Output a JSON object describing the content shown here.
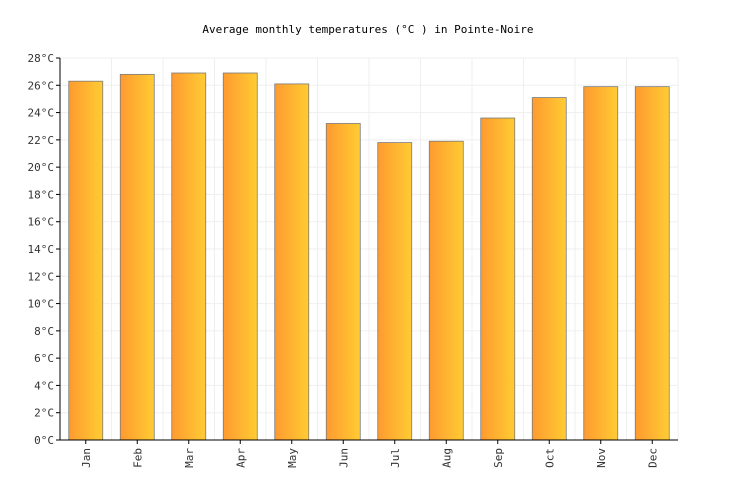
{
  "chart_data": {
    "type": "bar",
    "title": "Average monthly temperatures (°C ) in Pointe-Noire",
    "xlabel": "",
    "ylabel": "",
    "categories": [
      "Jan",
      "Feb",
      "Mar",
      "Apr",
      "May",
      "Jun",
      "Jul",
      "Aug",
      "Sep",
      "Oct",
      "Nov",
      "Dec"
    ],
    "values": [
      26.3,
      26.8,
      26.9,
      26.9,
      26.1,
      23.2,
      21.8,
      21.9,
      23.6,
      25.1,
      25.9,
      25.9
    ],
    "ylim": [
      0,
      28
    ],
    "yticks": [
      0,
      2,
      4,
      6,
      8,
      10,
      12,
      14,
      16,
      18,
      20,
      22,
      24,
      26,
      28
    ],
    "ytick_labels": [
      "0°C",
      "2°C",
      "4°C",
      "6°C",
      "8°C",
      "10°C",
      "12°C",
      "14°C",
      "16°C",
      "18°C",
      "20°C",
      "22°C",
      "24°C",
      "26°C",
      "28°C"
    ],
    "grid": true,
    "legend": "none",
    "colors": {
      "bar_gradient_start": "#ff9a30",
      "bar_gradient_end": "#ffcc33",
      "bar_stroke": "#7a7a7a",
      "grid": "#efefef",
      "axis": "#000000"
    }
  }
}
